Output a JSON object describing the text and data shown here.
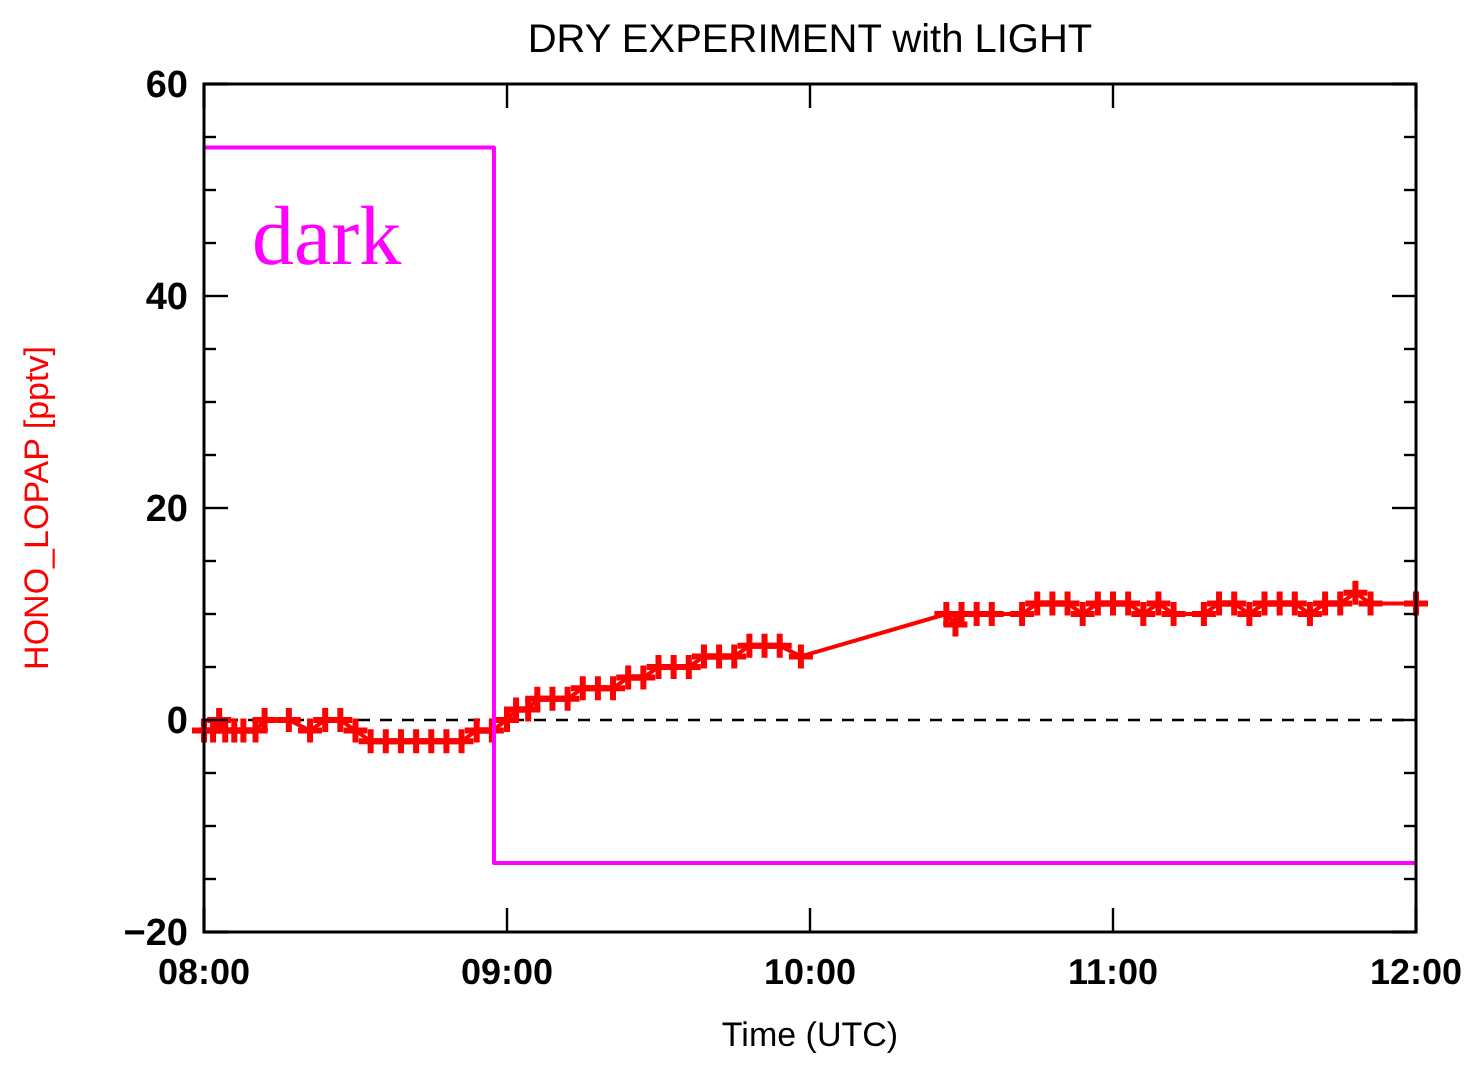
{
  "chart_data": {
    "type": "line",
    "title": "DRY EXPERIMENT with LIGHT",
    "xlabel": "Time (UTC)",
    "ylabel": "HONO_LOPAP [pptv]",
    "xlim": [
      8,
      12
    ],
    "xticks": [
      {
        "value": 8,
        "label": "08:00"
      },
      {
        "value": 9,
        "label": "09:00"
      },
      {
        "value": 10,
        "label": "10:00"
      },
      {
        "value": 11,
        "label": "11:00"
      },
      {
        "value": 12,
        "label": "12:00"
      }
    ],
    "ylim": [
      -20,
      60
    ],
    "yticks": [
      -20,
      {
        "value": -15,
        "label": null
      },
      {
        "value": -10,
        "label": null
      },
      {
        "value": -5,
        "label": null
      },
      0,
      {
        "value": 5,
        "label": null
      },
      {
        "value": 10,
        "label": null
      },
      {
        "value": 15,
        "label": null
      },
      20,
      {
        "value": 25,
        "label": null
      },
      {
        "value": 30,
        "label": null
      },
      {
        "value": 35,
        "label": null
      },
      40,
      {
        "value": 45,
        "label": null
      },
      {
        "value": 50,
        "label": null
      },
      {
        "value": 55,
        "label": null
      },
      60
    ],
    "grid": false,
    "ref_lines": [
      {
        "axis": "y",
        "value": 0,
        "color": "#000000",
        "line_style": "dashed"
      }
    ],
    "annotations": [
      "dark"
    ],
    "series": [
      {
        "color": "#ff0000",
        "marker": "cross",
        "line_style": "solid",
        "x": [
          8.0,
          8.03,
          8.05,
          8.07,
          8.1,
          8.13,
          8.17,
          8.2,
          8.28,
          8.35,
          8.4,
          8.45,
          8.5,
          8.55,
          8.6,
          8.65,
          8.7,
          8.75,
          8.8,
          8.85,
          8.9,
          8.95,
          9.0,
          9.03,
          9.07,
          9.1,
          9.15,
          9.2,
          9.25,
          9.3,
          9.35,
          9.4,
          9.45,
          9.5,
          9.55,
          9.6,
          9.65,
          9.7,
          9.75,
          9.8,
          9.85,
          9.9,
          9.97,
          10.45,
          10.48,
          10.5,
          10.55,
          10.6,
          10.7,
          10.75,
          10.8,
          10.85,
          10.9,
          10.95,
          11.0,
          11.05,
          11.1,
          11.15,
          11.2,
          11.3,
          11.35,
          11.4,
          11.45,
          11.5,
          11.55,
          11.6,
          11.65,
          11.7,
          11.75,
          11.8,
          11.85,
          12.0
        ],
        "values": [
          -1,
          -1,
          0,
          -1,
          -1,
          -1,
          -1,
          0,
          0,
          -1,
          0,
          0,
          -1,
          -2,
          -2,
          -2,
          -2,
          -2,
          -2,
          -2,
          -1,
          -1,
          0,
          1,
          1,
          2,
          2,
          2,
          3,
          3,
          3,
          4,
          4,
          5,
          5,
          5,
          6,
          6,
          6,
          7,
          7,
          7,
          6,
          10,
          9,
          10,
          10,
          10,
          10,
          11,
          11,
          11,
          10,
          11,
          11,
          11,
          10,
          11,
          10,
          10,
          11,
          11,
          10,
          11,
          11,
          11,
          10,
          11,
          11,
          12,
          11,
          11
        ]
      },
      {
        "type": "step",
        "color": "#ff00ff",
        "marker": "none",
        "line_style": "solid",
        "x": [
          8,
          8.957,
          12
        ],
        "values": [
          54,
          -13.5,
          -13.5
        ]
      }
    ]
  }
}
